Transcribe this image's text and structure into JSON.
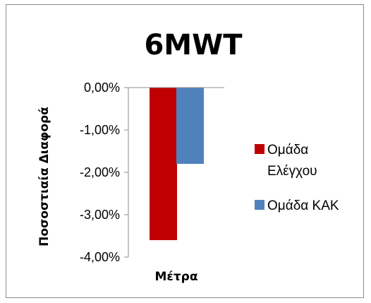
{
  "chart_data": {
    "type": "bar",
    "title": "6MWT",
    "xlabel": "",
    "ylabel": "Ποσοστιαία Διαφορά",
    "categories": [
      "Μέτρα"
    ],
    "series": [
      {
        "name": "Ομάδα Ελέγχου",
        "values": [
          -3.6
        ],
        "color": "#c00000"
      },
      {
        "name": "Ομάδα ΚΑΚ",
        "values": [
          -1.8
        ],
        "color": "#4f81bd"
      }
    ],
    "ylim": [
      -4,
      0
    ],
    "yticks": [
      0,
      -1,
      -2,
      -3,
      -4
    ],
    "ytick_labels": [
      "0,00%",
      "-1,00%",
      "-2,00%",
      "-3,00%",
      "-4,00%"
    ],
    "legend_lines": [
      [
        "Ομάδα",
        "Ελέγχου"
      ],
      [
        "Ομάδα ΚΑΚ"
      ]
    ],
    "legend_position": "right",
    "grid": false
  }
}
